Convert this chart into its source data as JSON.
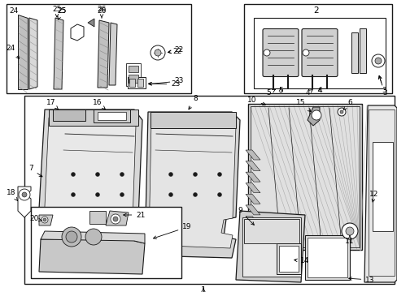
{
  "bg": "#ffffff",
  "lc": "#1a1a1a",
  "gray1": "#c8c8c8",
  "gray2": "#b0b0b0",
  "gray3": "#e0e0e0",
  "gray4": "#d4d4d4",
  "fs": 6.5
}
